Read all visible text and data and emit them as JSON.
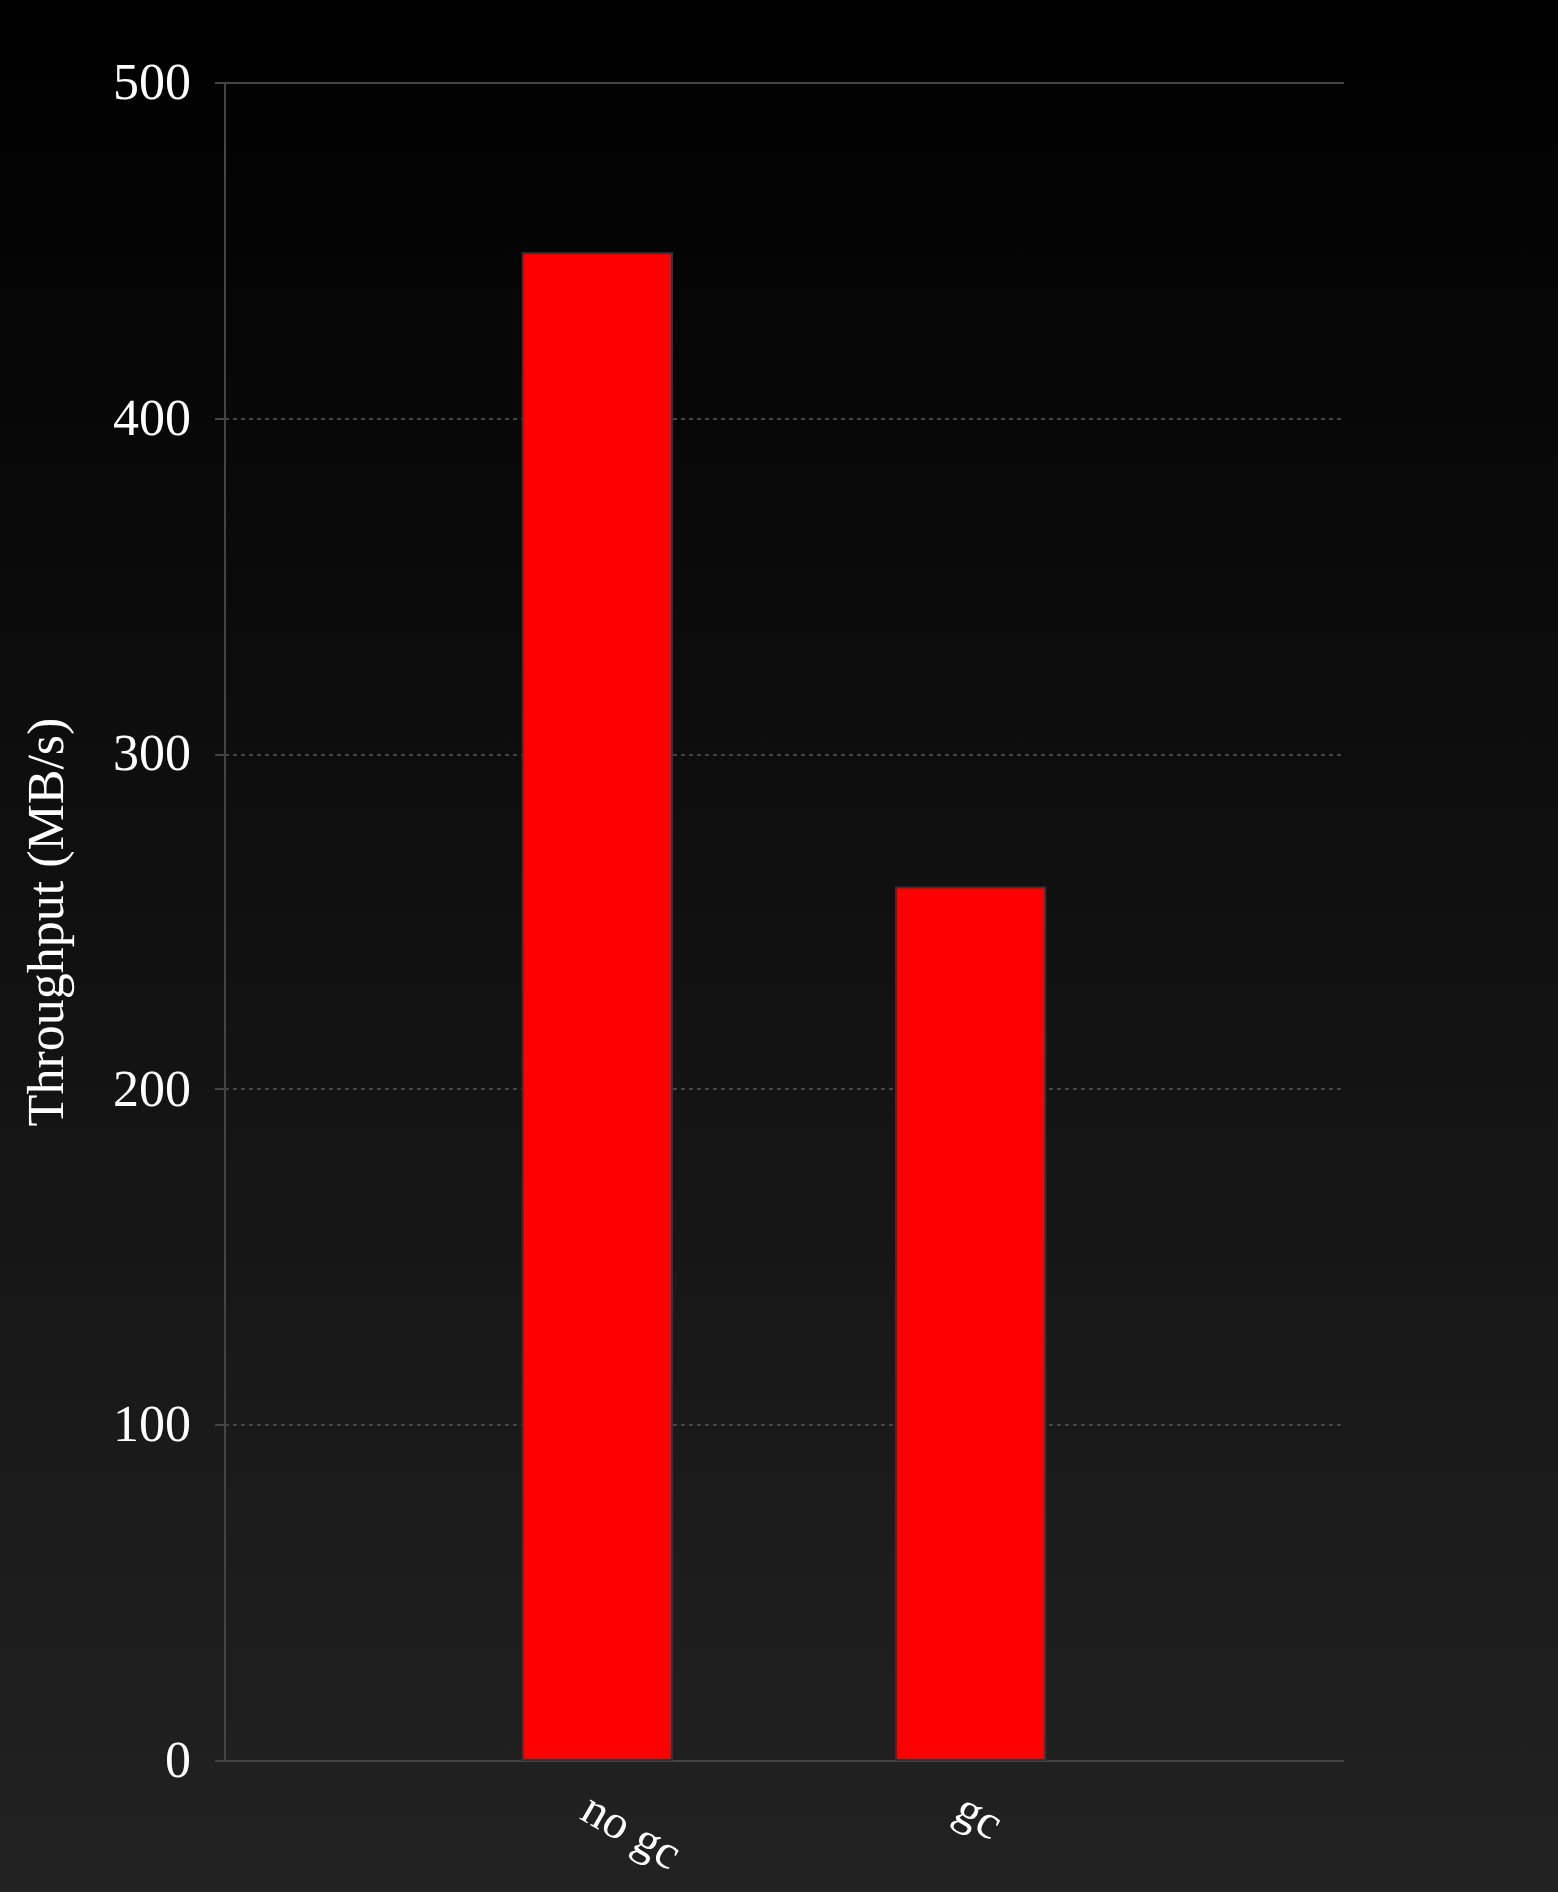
{
  "chart_data": {
    "type": "bar",
    "ylabel": "Throughput (MB/s)",
    "categories": [
      "no gc",
      "gc"
    ],
    "values": [
      449,
      260
    ],
    "color": "#ff0000",
    "ylim": [
      0,
      500
    ],
    "yticks": [
      0,
      100,
      200,
      300,
      400,
      500
    ],
    "grid": "y"
  }
}
